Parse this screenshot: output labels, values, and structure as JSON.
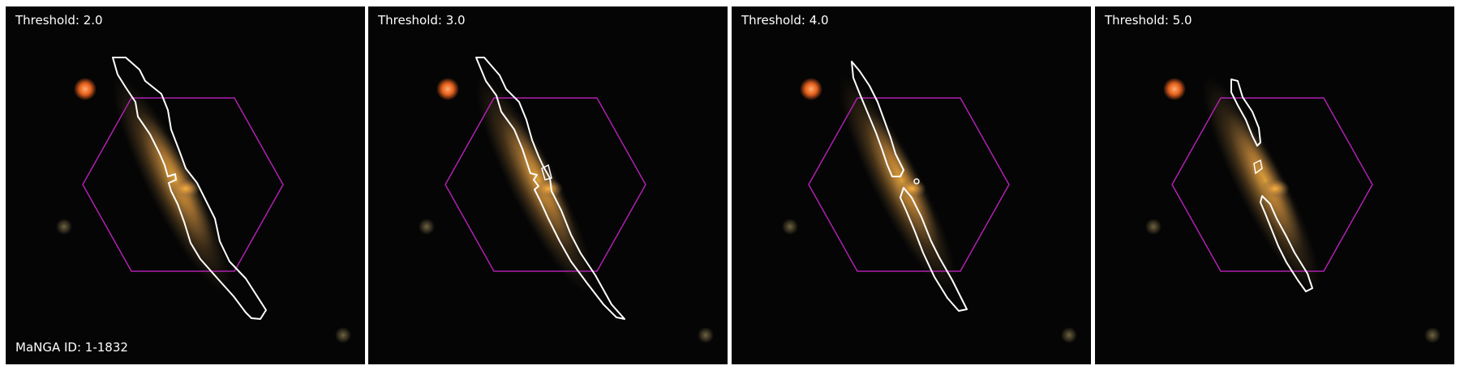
{
  "panels": [
    {
      "label": "Threshold: 2.0",
      "footer": "MaNGA ID: 1-1832"
    },
    {
      "label": "Threshold: 3.0",
      "footer": ""
    },
    {
      "label": "Threshold: 4.0",
      "footer": ""
    },
    {
      "label": "Threshold: 5.0",
      "footer": ""
    }
  ],
  "colors": {
    "background": "#050505",
    "hexagon": "#b020b0",
    "contour": "#ffffff",
    "galaxy_core": "#f0a030",
    "galaxy_halo": "#8a6a3a",
    "bright_star": "#ff7a2a",
    "faint_source": "#6a5a3a"
  }
}
